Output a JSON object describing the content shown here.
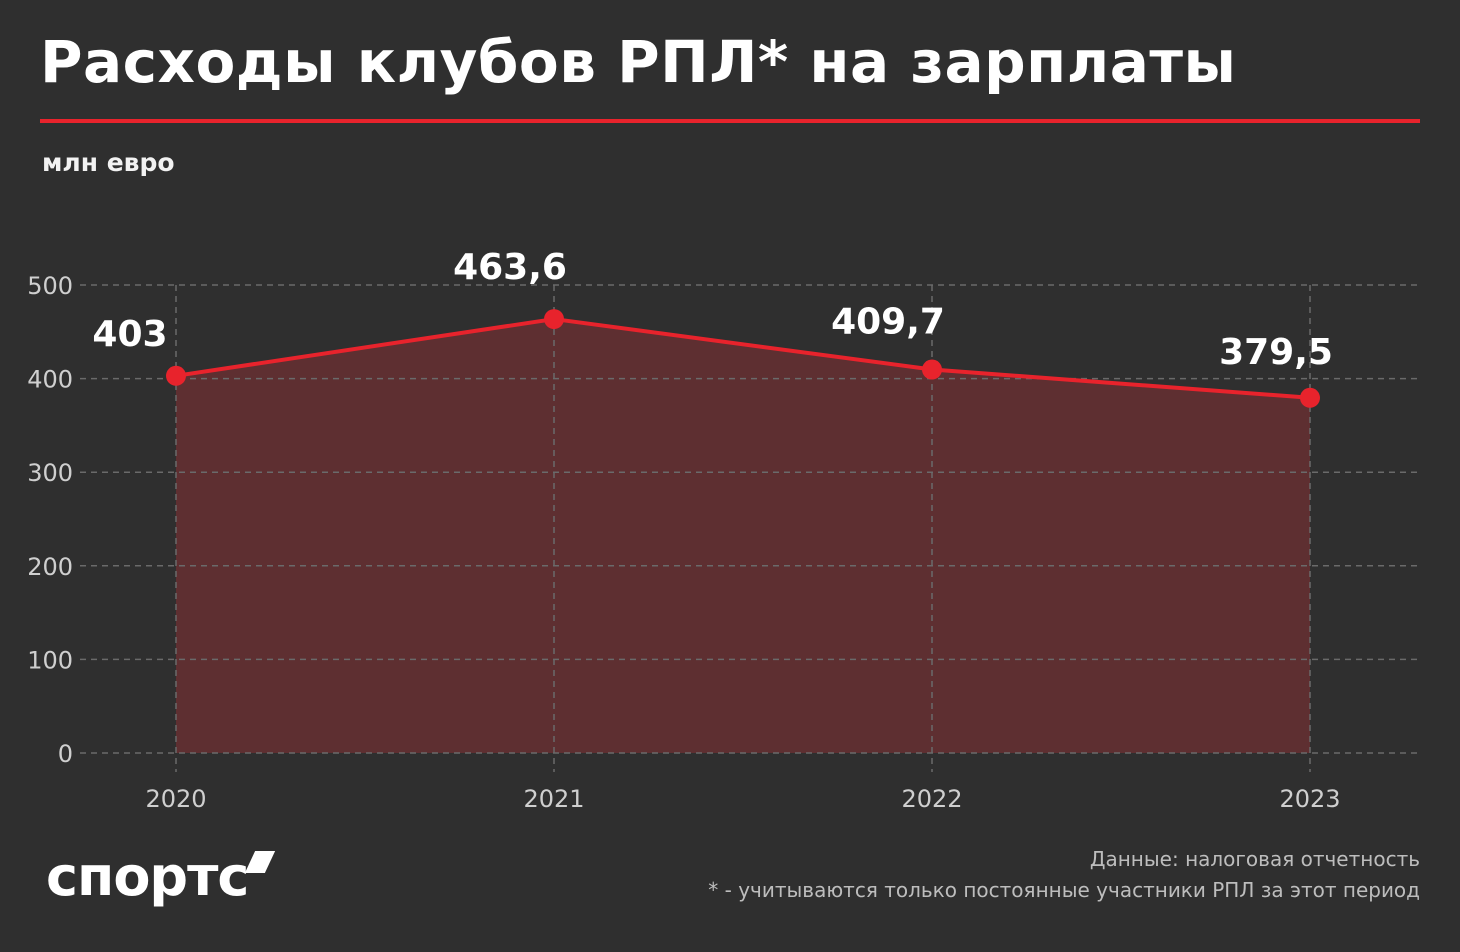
{
  "header": {
    "title": "Расходы клубов РПЛ* на зарплаты",
    "unit_label": "млн евро"
  },
  "colors": {
    "background": "#2f2f2f",
    "accent": "#e8232c",
    "area_fill": "#5e2f31",
    "grid": "#6a6a6a",
    "tick_text": "#cfcfcf"
  },
  "chart_data": {
    "type": "area",
    "title": "Расходы клубов РПЛ* на зарплаты",
    "ylabel": "млн евро",
    "xlabel": "",
    "categories": [
      "2020",
      "2021",
      "2022",
      "2023"
    ],
    "values": [
      403,
      463.6,
      409.7,
      379.5
    ],
    "value_labels": [
      "403",
      "463,6",
      "409,7",
      "379,5"
    ],
    "yticks": [
      0,
      100,
      200,
      300,
      400,
      500
    ],
    "ylim": [
      0,
      500
    ],
    "grid": true,
    "grid_style": "dashed",
    "legend": "none"
  },
  "footer": {
    "logo": "спортс",
    "source": "Данные: налоговая отчетность",
    "note": "* - учитываются только постоянные участники РПЛ за этот период"
  }
}
